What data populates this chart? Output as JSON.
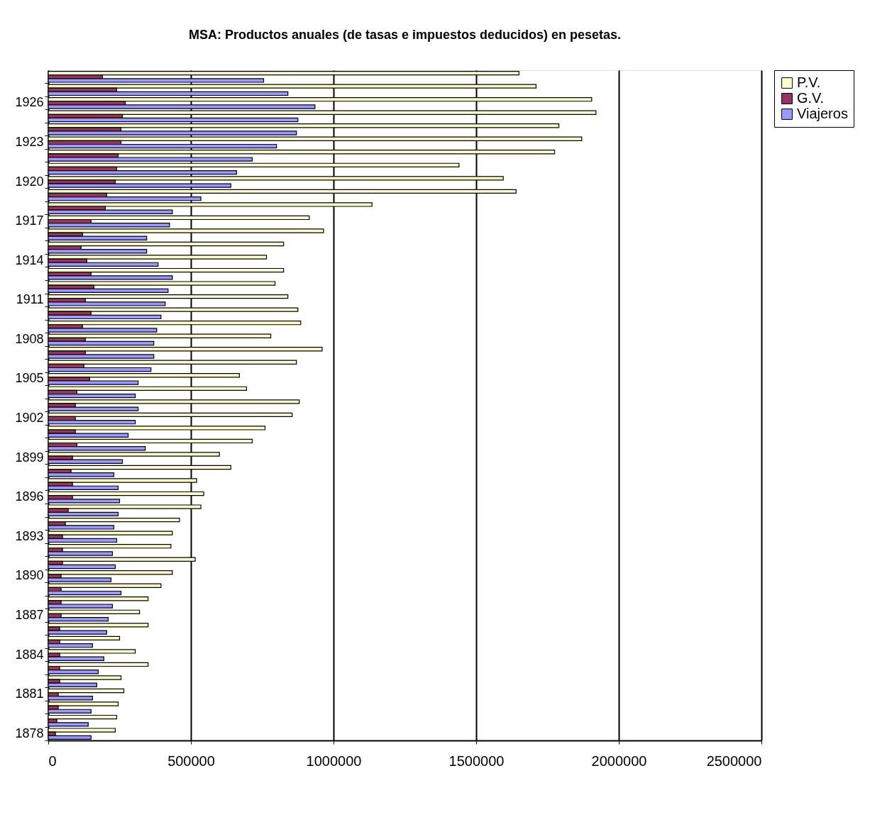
{
  "chart_data": {
    "type": "bar",
    "orientation": "horizontal",
    "title": "MSA: Productos anuales (de tasas e impuestos deducidos) en pesetas.",
    "categories": [
      null,
      null,
      "1926",
      null,
      null,
      "1923",
      null,
      null,
      "1920",
      null,
      null,
      "1917",
      null,
      null,
      "1914",
      null,
      null,
      "1911",
      null,
      null,
      "1908",
      null,
      null,
      "1905",
      null,
      null,
      "1902",
      null,
      null,
      "1899",
      null,
      null,
      "1896",
      null,
      null,
      "1893",
      null,
      null,
      "1890",
      null,
      null,
      "1887",
      null,
      null,
      "1884",
      null,
      null,
      "1881",
      null,
      null,
      "1878"
    ],
    "series": [
      {
        "name": "P.V.",
        "color": "#ffffcc",
        "values": [
          1650000,
          1710000,
          1905000,
          1920000,
          1790000,
          1870000,
          1775000,
          1440000,
          1595000,
          1640000,
          1135000,
          915000,
          965000,
          825000,
          765000,
          825000,
          795000,
          840000,
          875000,
          885000,
          780000,
          960000,
          870000,
          670000,
          695000,
          880000,
          855000,
          760000,
          715000,
          600000,
          640000,
          520000,
          545000,
          535000,
          460000,
          435000,
          430000,
          515000,
          435000,
          395000,
          350000,
          320000,
          350000,
          250000,
          305000,
          350000,
          255000,
          265000,
          245000,
          240000,
          235000
        ]
      },
      {
        "name": "G.V.",
        "color": "#993366",
        "values": [
          190000,
          240000,
          270000,
          260000,
          255000,
          255000,
          245000,
          240000,
          235000,
          205000,
          200000,
          150000,
          120000,
          115000,
          135000,
          150000,
          160000,
          130000,
          150000,
          120000,
          130000,
          130000,
          125000,
          145000,
          100000,
          95000,
          95000,
          95000,
          100000,
          85000,
          80000,
          85000,
          85000,
          70000,
          60000,
          50000,
          50000,
          50000,
          45000,
          45000,
          45000,
          45000,
          40000,
          40000,
          40000,
          40000,
          40000,
          35000,
          35000,
          30000,
          25000
        ]
      },
      {
        "name": "Viajeros",
        "color": "#9999ff",
        "values": [
          755000,
          840000,
          935000,
          875000,
          870000,
          800000,
          715000,
          660000,
          640000,
          535000,
          435000,
          425000,
          345000,
          345000,
          385000,
          435000,
          420000,
          410000,
          395000,
          380000,
          370000,
          370000,
          360000,
          315000,
          305000,
          315000,
          305000,
          280000,
          340000,
          260000,
          230000,
          245000,
          250000,
          245000,
          230000,
          240000,
          225000,
          235000,
          220000,
          255000,
          225000,
          210000,
          205000,
          155000,
          195000,
          175000,
          170000,
          155000,
          150000,
          140000,
          150000
        ]
      }
    ],
    "xlim": [
      0,
      2500000
    ],
    "xticks": [
      0,
      500000,
      1000000,
      1500000,
      2000000,
      2500000
    ],
    "grid": "x",
    "legend": "right"
  }
}
